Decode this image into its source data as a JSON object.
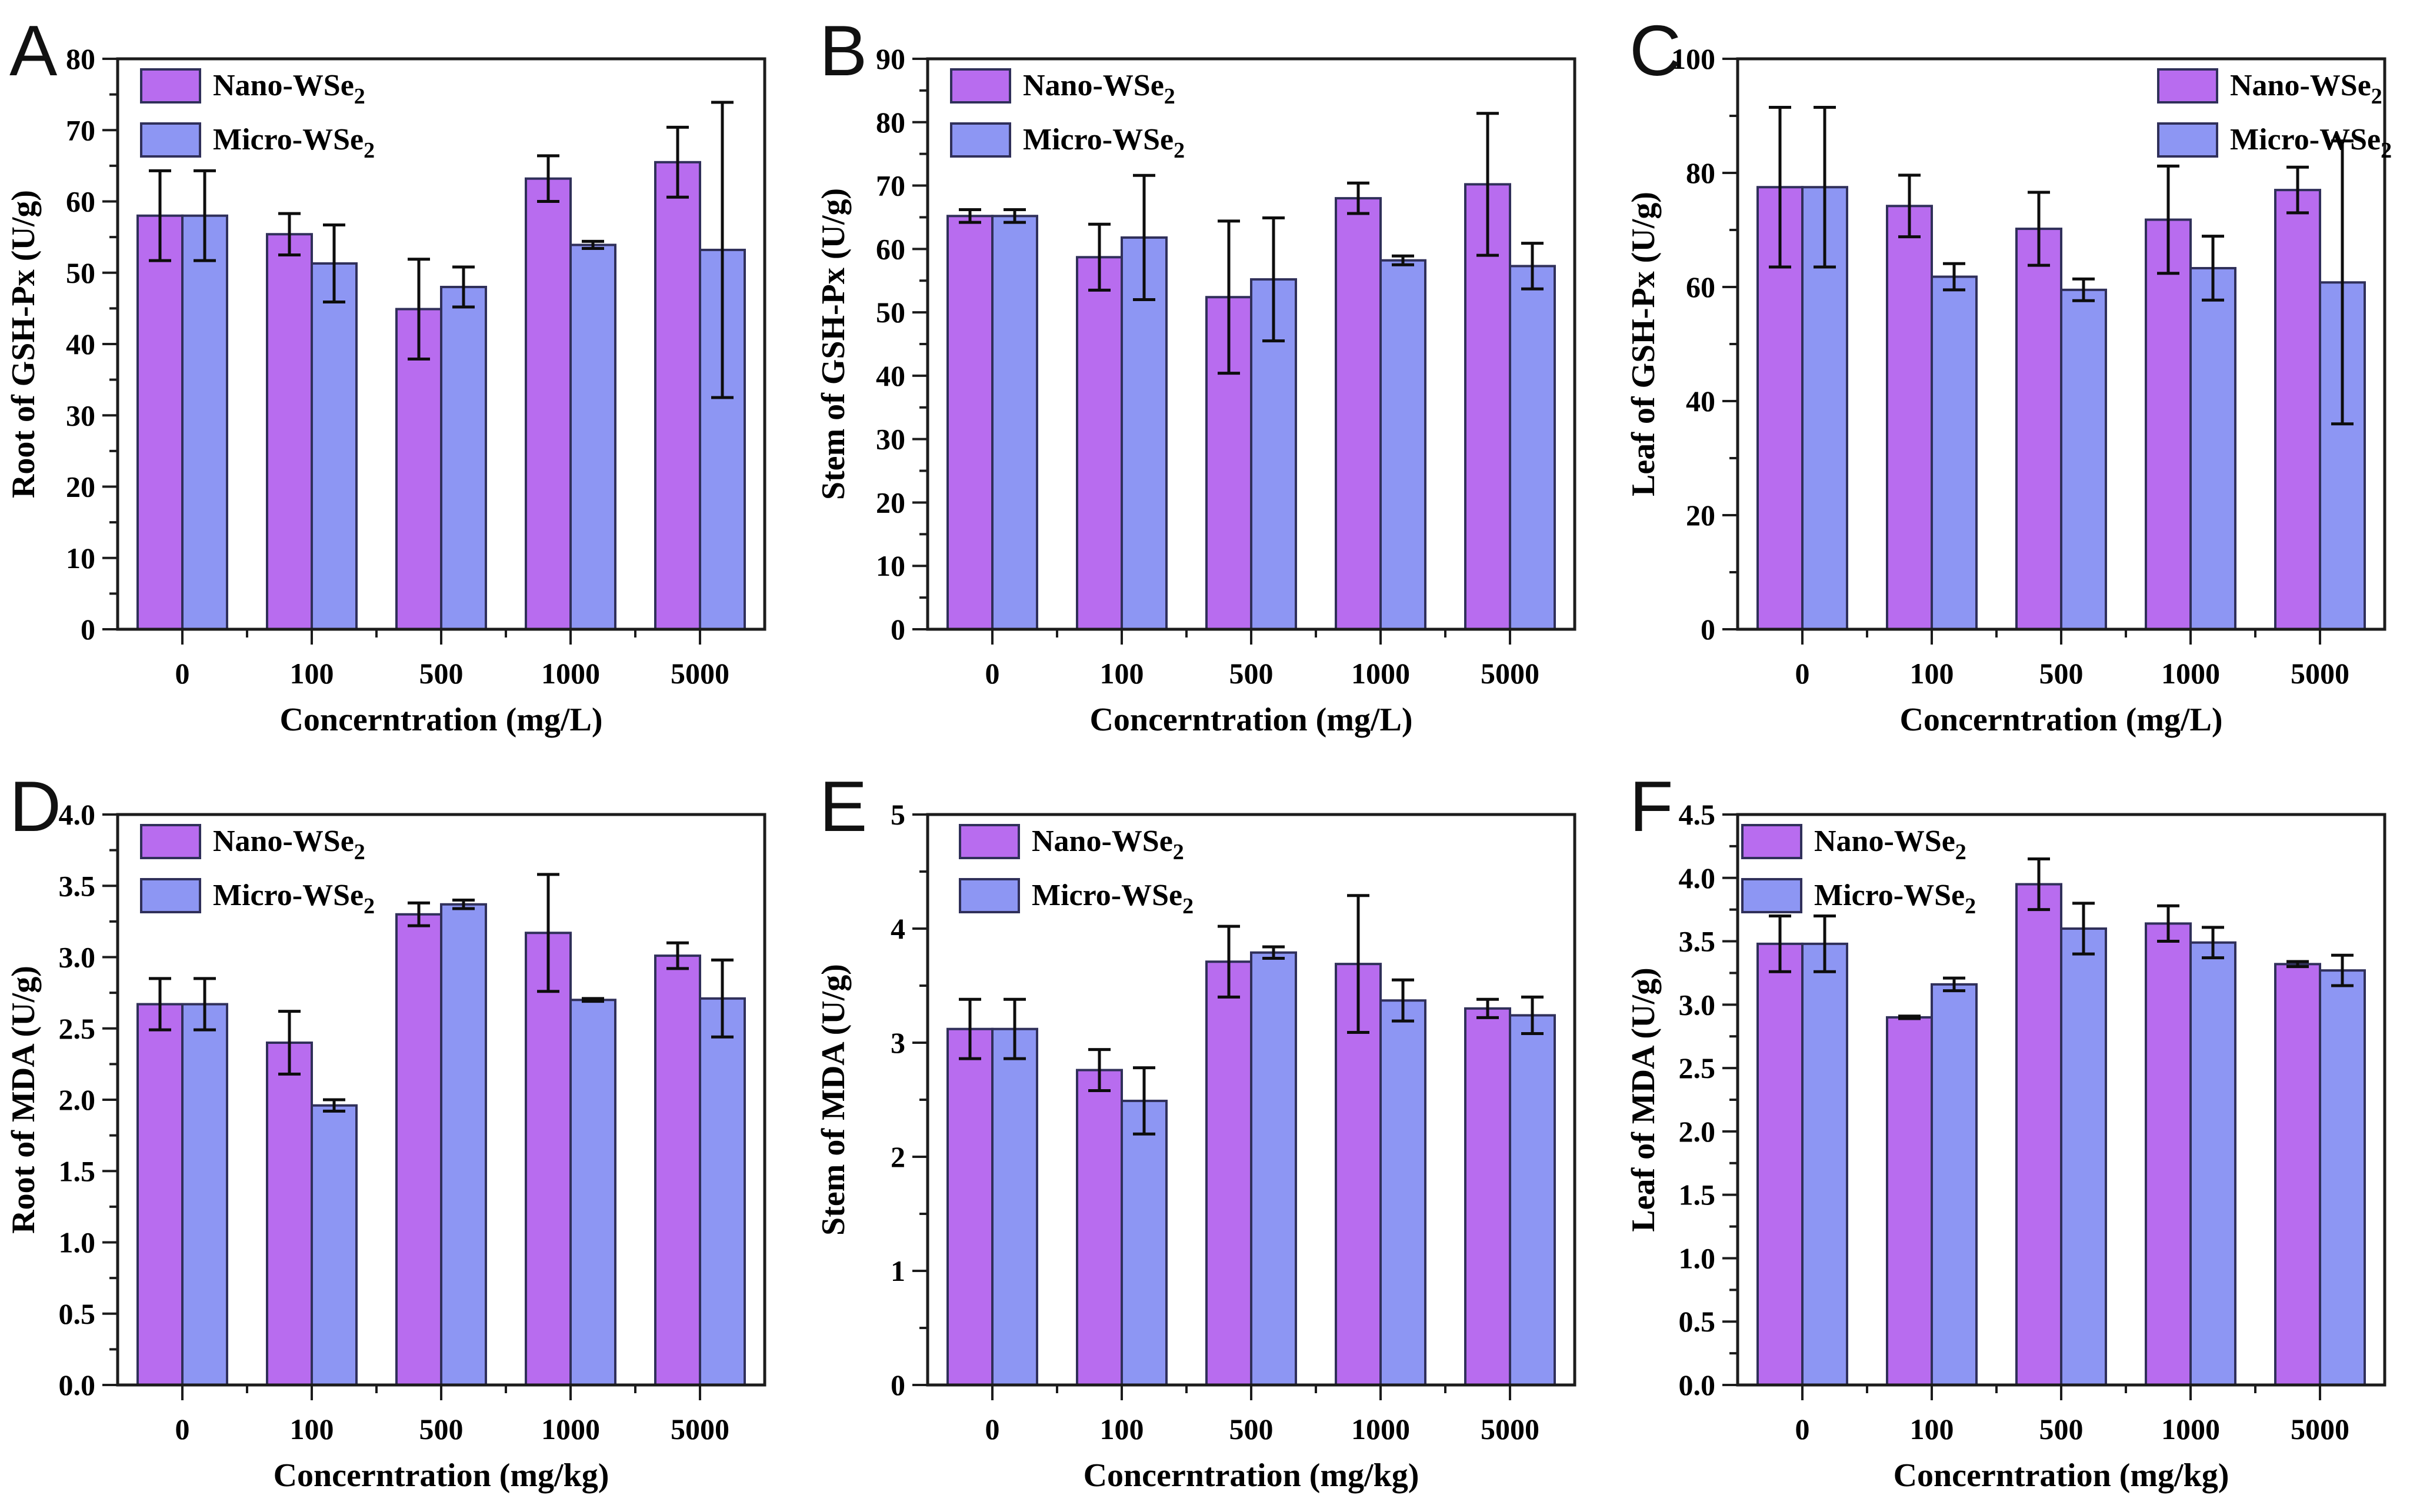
{
  "figure": {
    "background": "#ffffff",
    "text_color": "#000000",
    "axis_color": "#1c1c1c",
    "error_bar_color": "#0d0d0d",
    "bar_border_color": "#30305a",
    "series_colors": [
      "#b86cef",
      "#8d96f3"
    ],
    "legend_swatch_nano": "nano-legend-swatch",
    "legend_swatch_micro": "micro-legend-swatch"
  },
  "chart_data": [
    {
      "type": "bar",
      "panel_label": "A",
      "ylabel": "Root of GSH-Px (U/g)",
      "xlabel": "Concerntration (mg/L)",
      "categories": [
        "0",
        "100",
        "500",
        "1000",
        "5000"
      ],
      "ylim": [
        0,
        80
      ],
      "ytick_step": 10,
      "ytick_decimals": 0,
      "grid": false,
      "legend_position": "top-left",
      "legend_inset": 40,
      "series": [
        {
          "name": "Nano-WSe2",
          "values": [
            58.0,
            55.4,
            44.9,
            63.2,
            65.5
          ],
          "errors": [
            6.3,
            2.9,
            7.0,
            3.2,
            4.9
          ]
        },
        {
          "name": "Micro-WSe2",
          "values": [
            58.0,
            51.3,
            48.0,
            53.9,
            53.2
          ],
          "errors": [
            6.3,
            5.4,
            2.8,
            0.5,
            20.7
          ]
        }
      ]
    },
    {
      "type": "bar",
      "panel_label": "B",
      "ylabel": "Stem of GSH-Px (U/g)",
      "xlabel": "Concerntration (mg/L)",
      "categories": [
        "0",
        "100",
        "500",
        "1000",
        "5000"
      ],
      "ylim": [
        0,
        90
      ],
      "ytick_step": 10,
      "ytick_decimals": 0,
      "grid": false,
      "legend_position": "top-left",
      "legend_inset": 40,
      "series": [
        {
          "name": "Nano-WSe2",
          "values": [
            65.2,
            58.7,
            52.4,
            68.0,
            70.2
          ],
          "errors": [
            1.0,
            5.2,
            12.0,
            2.4,
            11.2
          ]
        },
        {
          "name": "Micro-WSe2",
          "values": [
            65.2,
            61.8,
            55.2,
            58.2,
            57.3
          ],
          "errors": [
            1.0,
            9.8,
            9.7,
            0.7,
            3.6
          ]
        }
      ]
    },
    {
      "type": "bar",
      "panel_label": "C",
      "ylabel": "Leaf of GSH-Px (U/g)",
      "xlabel": "Concerntration (mg/L)",
      "categories": [
        "0",
        "100",
        "500",
        "1000",
        "5000"
      ],
      "ylim": [
        0,
        100
      ],
      "ytick_step": 20,
      "ytick_decimals": 0,
      "grid": false,
      "legend_position": "top-right",
      "legend_inset": 385,
      "series": [
        {
          "name": "Nano-WSe2",
          "values": [
            77.5,
            74.2,
            70.2,
            71.8,
            77.0
          ],
          "errors": [
            14.0,
            5.4,
            6.4,
            9.4,
            4.0
          ]
        },
        {
          "name": "Micro-WSe2",
          "values": [
            77.5,
            61.8,
            59.5,
            63.3,
            60.8
          ],
          "errors": [
            14.0,
            2.3,
            1.9,
            5.6,
            24.8
          ]
        }
      ]
    },
    {
      "type": "bar",
      "panel_label": "D",
      "ylabel": "Root of MDA (U/g)",
      "xlabel": "Concerntration (mg/kg)",
      "categories": [
        "0",
        "100",
        "500",
        "1000",
        "5000"
      ],
      "ylim": [
        0,
        4.0
      ],
      "ytick_step": 0.5,
      "ytick_decimals": 1,
      "grid": false,
      "legend_position": "top-left",
      "legend_inset": 40,
      "series": [
        {
          "name": "Nano-WSe2",
          "values": [
            2.67,
            2.4,
            3.3,
            3.17,
            3.01
          ],
          "errors": [
            0.18,
            0.22,
            0.08,
            0.41,
            0.09
          ]
        },
        {
          "name": "Micro-WSe2",
          "values": [
            2.67,
            1.96,
            3.37,
            2.7,
            2.71
          ],
          "errors": [
            0.18,
            0.04,
            0.03,
            0.01,
            0.27
          ]
        }
      ]
    },
    {
      "type": "bar",
      "panel_label": "E",
      "ylabel": "Stem of MDA (U/g)",
      "xlabel": "Concerntration (mg/kg)",
      "categories": [
        "0",
        "100",
        "500",
        "1000",
        "5000"
      ],
      "ylim": [
        0,
        5
      ],
      "ytick_step": 1,
      "ytick_decimals": 0,
      "grid": false,
      "legend_position": "top-left",
      "legend_inset": 55,
      "series": [
        {
          "name": "Nano-WSe2",
          "values": [
            3.12,
            2.76,
            3.71,
            3.69,
            3.3
          ],
          "errors": [
            0.26,
            0.18,
            0.31,
            0.6,
            0.08
          ]
        },
        {
          "name": "Micro-WSe2",
          "values": [
            3.12,
            2.49,
            3.79,
            3.37,
            3.24
          ],
          "errors": [
            0.26,
            0.29,
            0.05,
            0.18,
            0.16
          ]
        }
      ]
    },
    {
      "type": "bar",
      "panel_label": "F",
      "ylabel": "Leaf of MDA (U/g)",
      "xlabel": "Concerntration (mg/kg)",
      "categories": [
        "0",
        "100",
        "500",
        "1000",
        "5000"
      ],
      "ylim": [
        0,
        4.5
      ],
      "ytick_step": 0.5,
      "ytick_decimals": 1,
      "grid": false,
      "legend_position": "top-left",
      "legend_inset": 8,
      "series": [
        {
          "name": "Nano-WSe2",
          "values": [
            3.48,
            2.9,
            3.95,
            3.64,
            3.32
          ],
          "errors": [
            0.22,
            0.01,
            0.2,
            0.14,
            0.02
          ]
        },
        {
          "name": "Micro-WSe2",
          "values": [
            3.48,
            3.16,
            3.6,
            3.49,
            3.27
          ],
          "errors": [
            0.22,
            0.05,
            0.2,
            0.12,
            0.12
          ]
        }
      ]
    }
  ]
}
